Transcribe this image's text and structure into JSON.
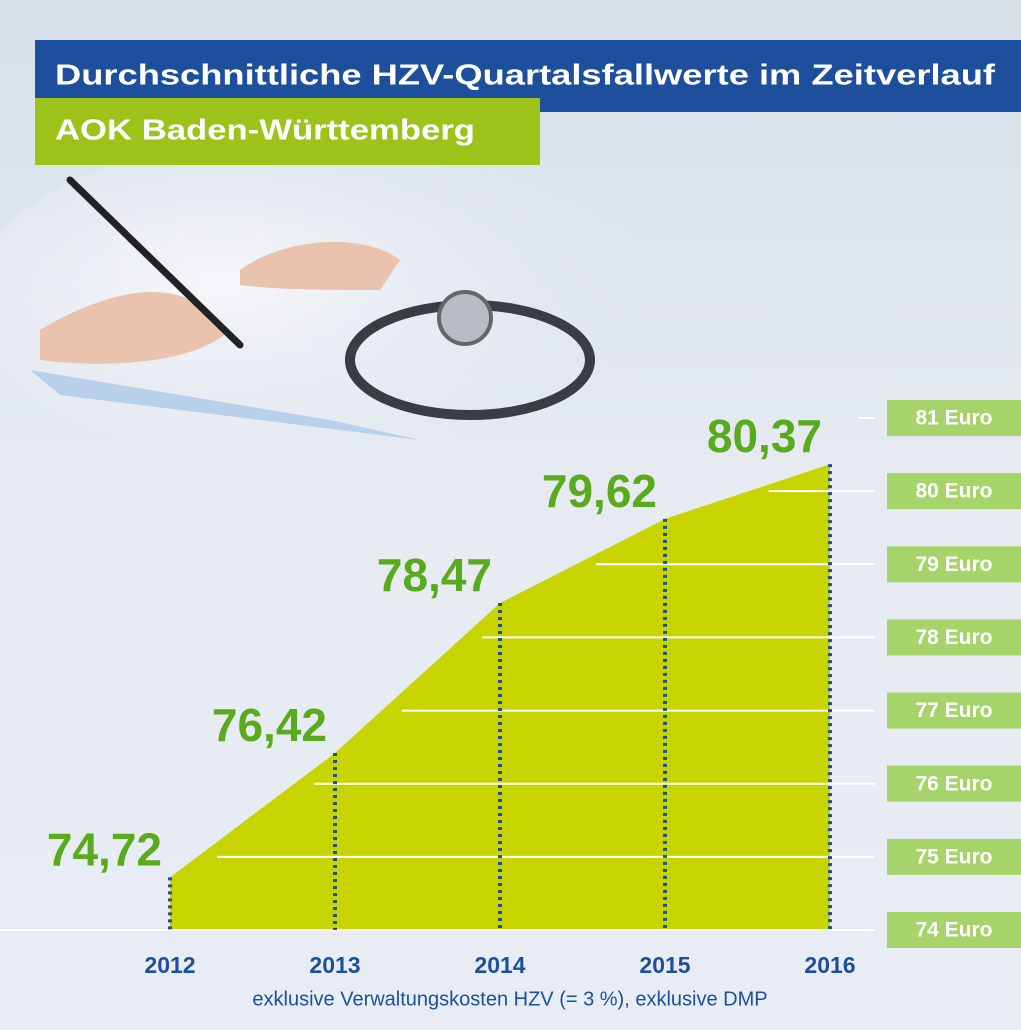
{
  "chart_data": {
    "type": "area",
    "title": "Durchschnittliche HZV-Quartalsfallwerte im Zeitverlauf",
    "subtitle": "AOK Baden-Württemberg",
    "categories": [
      "2012",
      "2013",
      "2014",
      "2015",
      "2016"
    ],
    "values": [
      74.72,
      76.42,
      78.47,
      79.62,
      80.37
    ],
    "value_labels": [
      "74,72",
      "76,42",
      "78,47",
      "79,62",
      "80,37"
    ],
    "color": "#c8d400",
    "ylim": [
      74,
      81
    ],
    "yticks": [
      {
        "value": 74,
        "label": "74 Euro"
      },
      {
        "value": 75,
        "label": "75 Euro"
      },
      {
        "value": 76,
        "label": "76 Euro"
      },
      {
        "value": 77,
        "label": "77 Euro"
      },
      {
        "value": 78,
        "label": "78 Euro"
      },
      {
        "value": 79,
        "label": "79 Euro"
      },
      {
        "value": 80,
        "label": "80 Euro"
      },
      {
        "value": 81,
        "label": "81 Euro"
      }
    ],
    "grid": true,
    "note": "exklusive Verwaltungskosten HZV (= 3 %), exklusive DMP"
  }
}
